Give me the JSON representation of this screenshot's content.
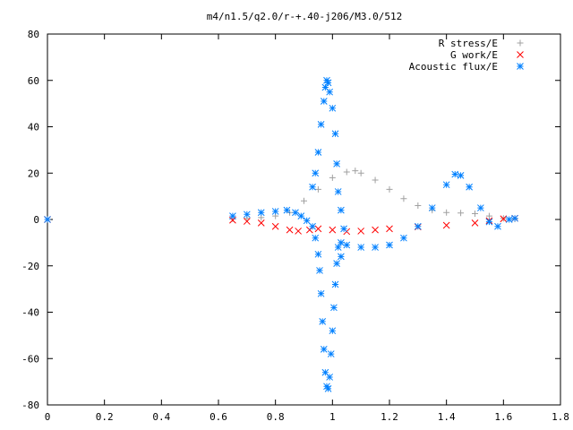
{
  "chart_data": {
    "type": "scatter",
    "title": "m4/n1.5/q2.0/r-+.40-j206/M3.0/512",
    "xlabel": "",
    "ylabel": "",
    "xlim": [
      0,
      1.8
    ],
    "ylim": [
      -80,
      80
    ],
    "xticks": [
      0,
      0.2,
      0.4,
      0.6,
      0.8,
      1,
      1.2,
      1.4,
      1.6,
      1.8
    ],
    "xtick_labels": [
      "0",
      "0.2",
      "0.4",
      "0.6",
      "0.8",
      "1",
      "1.2",
      "1.4",
      "1.6",
      "1.8"
    ],
    "yticks": [
      -80,
      -60,
      -40,
      -20,
      0,
      20,
      40,
      60,
      80
    ],
    "ytick_labels": [
      "-80",
      "-60",
      "-40",
      "-20",
      "0",
      "20",
      "40",
      "60",
      "80"
    ],
    "grid": false,
    "legend_position": "top-right",
    "series": [
      {
        "name": "R stress/E",
        "marker": "+",
        "color": "#a0a0a0",
        "points": [
          [
            0,
            0
          ],
          [
            0.65,
            0.3
          ],
          [
            0.7,
            0.5
          ],
          [
            0.75,
            0.8
          ],
          [
            0.8,
            1.5
          ],
          [
            0.85,
            3
          ],
          [
            0.9,
            8
          ],
          [
            0.95,
            13
          ],
          [
            1.0,
            18
          ],
          [
            1.05,
            20.5
          ],
          [
            1.08,
            21
          ],
          [
            1.1,
            20
          ],
          [
            1.15,
            17
          ],
          [
            1.2,
            13
          ],
          [
            1.25,
            9
          ],
          [
            1.3,
            6
          ],
          [
            1.35,
            4
          ],
          [
            1.4,
            3
          ],
          [
            1.45,
            2.8
          ],
          [
            1.5,
            2.5
          ],
          [
            1.55,
            1.5
          ],
          [
            1.6,
            0.5
          ],
          [
            1.64,
            0.2
          ]
        ]
      },
      {
        "name": "G work/E",
        "marker": "x",
        "color": "#ff0000",
        "points": [
          [
            0,
            0
          ],
          [
            0.65,
            -0.3
          ],
          [
            0.7,
            -0.8
          ],
          [
            0.75,
            -1.5
          ],
          [
            0.8,
            -3
          ],
          [
            0.85,
            -4.5
          ],
          [
            0.88,
            -5
          ],
          [
            0.92,
            -4.5
          ],
          [
            0.95,
            -4
          ],
          [
            1.0,
            -4.5
          ],
          [
            1.05,
            -5.2
          ],
          [
            1.1,
            -5
          ],
          [
            1.15,
            -4.5
          ],
          [
            1.2,
            -4
          ],
          [
            1.3,
            -3.2
          ],
          [
            1.4,
            -2.5
          ],
          [
            1.5,
            -1.5
          ],
          [
            1.55,
            -0.5
          ],
          [
            1.6,
            0.3
          ],
          [
            1.64,
            0.5
          ]
        ]
      },
      {
        "name": "Acoustic flux/E",
        "marker": "*",
        "color": "#0080ff",
        "points": [
          [
            0,
            0
          ],
          [
            0.65,
            1.5
          ],
          [
            0.7,
            2.2
          ],
          [
            0.75,
            3
          ],
          [
            0.8,
            3.5
          ],
          [
            0.84,
            4
          ],
          [
            0.87,
            3
          ],
          [
            0.89,
            1.5
          ],
          [
            0.91,
            -0.5
          ],
          [
            0.93,
            -3
          ],
          [
            0.94,
            -8
          ],
          [
            0.95,
            -15
          ],
          [
            0.955,
            -22
          ],
          [
            0.96,
            -32
          ],
          [
            0.965,
            -44
          ],
          [
            0.97,
            -56
          ],
          [
            0.975,
            -66
          ],
          [
            0.98,
            -72
          ],
          [
            0.985,
            -73
          ],
          [
            0.99,
            -68
          ],
          [
            0.995,
            -58
          ],
          [
            1.0,
            -48
          ],
          [
            1.005,
            -38
          ],
          [
            1.01,
            -28
          ],
          [
            1.015,
            -19
          ],
          [
            1.02,
            -12
          ],
          [
            1.03,
            -10
          ],
          [
            1.05,
            -11
          ],
          [
            1.1,
            -12
          ],
          [
            1.15,
            -12
          ],
          [
            1.2,
            -11
          ],
          [
            1.25,
            -8
          ],
          [
            1.3,
            -3
          ],
          [
            1.35,
            5
          ],
          [
            1.4,
            15
          ],
          [
            1.43,
            19.5
          ],
          [
            1.45,
            19
          ],
          [
            1.48,
            14
          ],
          [
            1.52,
            5
          ],
          [
            1.55,
            -1
          ],
          [
            1.58,
            -3
          ],
          [
            1.62,
            0
          ],
          [
            1.64,
            0.5
          ],
          [
            0.93,
            14
          ],
          [
            0.94,
            20
          ],
          [
            0.95,
            29
          ],
          [
            0.96,
            41
          ],
          [
            0.97,
            51
          ],
          [
            0.975,
            57
          ],
          [
            0.98,
            60
          ],
          [
            0.985,
            59
          ],
          [
            0.99,
            55
          ],
          [
            1.0,
            48
          ],
          [
            1.01,
            37
          ],
          [
            1.015,
            24
          ],
          [
            1.02,
            12
          ],
          [
            1.03,
            4
          ],
          [
            1.04,
            -4
          ],
          [
            1.03,
            -16
          ]
        ]
      }
    ]
  }
}
